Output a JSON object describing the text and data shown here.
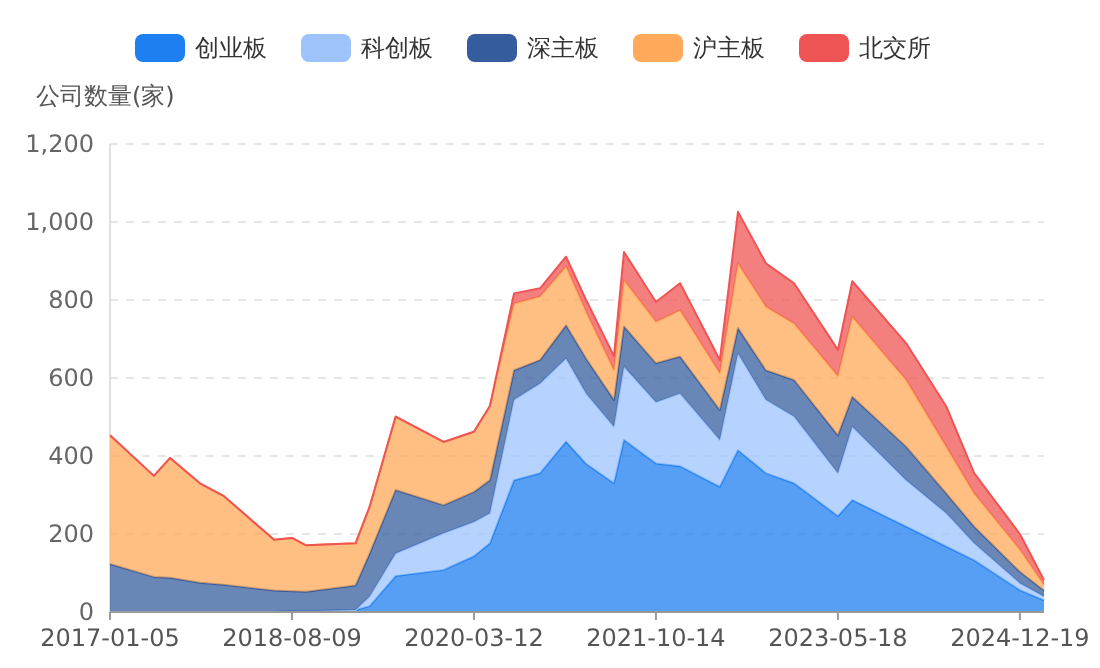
{
  "chart_data": {
    "type": "area",
    "stacked": true,
    "ylabel": "公司数量(家)",
    "legend": "top",
    "grid": "y",
    "line_style": "solid",
    "x": [
      "2017-01-05",
      "2017-05-25",
      "2017-07-16",
      "2017-10-19",
      "2018-01-04",
      "2018-06-13",
      "2018-08-09",
      "2018-09-23",
      "2019-02-28",
      "2019-04-14",
      "2019-07-06",
      "2019-12-06",
      "2020-03-12",
      "2020-05-02",
      "2020-07-18",
      "2020-10-09",
      "2020-12-31",
      "2021-03-05",
      "2021-06-02",
      "2021-07-04",
      "2021-10-14",
      "2021-12-30",
      "2022-05-06",
      "2022-07-03",
      "2022-09-30",
      "2022-12-29",
      "2023-05-18",
      "2023-07-03",
      "2023-12-22",
      "2024-04-28",
      "2024-07-26",
      "2024-12-19",
      "2025-03-06"
    ],
    "xlim": [
      "2017-01-05",
      "2025-03-06"
    ],
    "xticks": [
      "2017-01-05",
      "2018-08-09",
      "2020-03-12",
      "2021-10-14",
      "2023-05-18",
      "2024-12-19"
    ],
    "ylim": [
      0,
      1200
    ],
    "yticks": [
      0,
      200,
      400,
      600,
      800,
      {
        "value": 1000,
        "label": "1,000"
      },
      {
        "value": 1200,
        "label": "1,200"
      }
    ],
    "series": [
      {
        "name": "创业板",
        "color": "#1e7ff0",
        "values": [
          0,
          0,
          0,
          0,
          0,
          0,
          2,
          2,
          5,
          15,
          92,
          108,
          143,
          176,
          338,
          356,
          437,
          380,
          330,
          441,
          381,
          374,
          321,
          415,
          356,
          330,
          246,
          287,
          219,
          168,
          133,
          56,
          30
        ]
      },
      {
        "name": "科创板",
        "color": "#9dc3fd",
        "values": [
          0,
          0,
          0,
          0,
          0,
          0,
          0,
          0,
          0,
          25,
          58,
          94,
          88,
          77,
          206,
          230,
          213,
          180,
          145,
          188,
          157,
          186,
          120,
          248,
          188,
          171,
          110,
          188,
          119,
          85,
          43,
          18,
          10
        ]
      },
      {
        "name": "深主板",
        "color": "#355d9e",
        "values": [
          123,
          90,
          88,
          75,
          70,
          55,
          51,
          50,
          63,
          110,
          163,
          72,
          77,
          85,
          76,
          60,
          85,
          90,
          69,
          103,
          100,
          95,
          77,
          65,
          76,
          94,
          97,
          77,
          86,
          51,
          43,
          29,
          15
        ]
      },
      {
        "name": "沪主板",
        "color": "#ffa95a",
        "values": [
          330,
          259,
          307,
          255,
          227,
          130,
          137,
          119,
          108,
          120,
          188,
          162,
          154,
          190,
          171,
          163,
          151,
          120,
          76,
          119,
          106,
          119,
          94,
          166,
          163,
          145,
          152,
          205,
          171,
          120,
          85,
          57,
          15
        ]
      },
      {
        "name": "北交所",
        "color": "#ef5454",
        "values": [
          0,
          0,
          0,
          0,
          0,
          0,
          0,
          0,
          0,
          0,
          0,
          0,
          0,
          0,
          26,
          21,
          25,
          30,
          36,
          72,
          51,
          69,
          34,
          132,
          111,
          103,
          67,
          91,
          94,
          103,
          52,
          40,
          12
        ]
      }
    ]
  }
}
